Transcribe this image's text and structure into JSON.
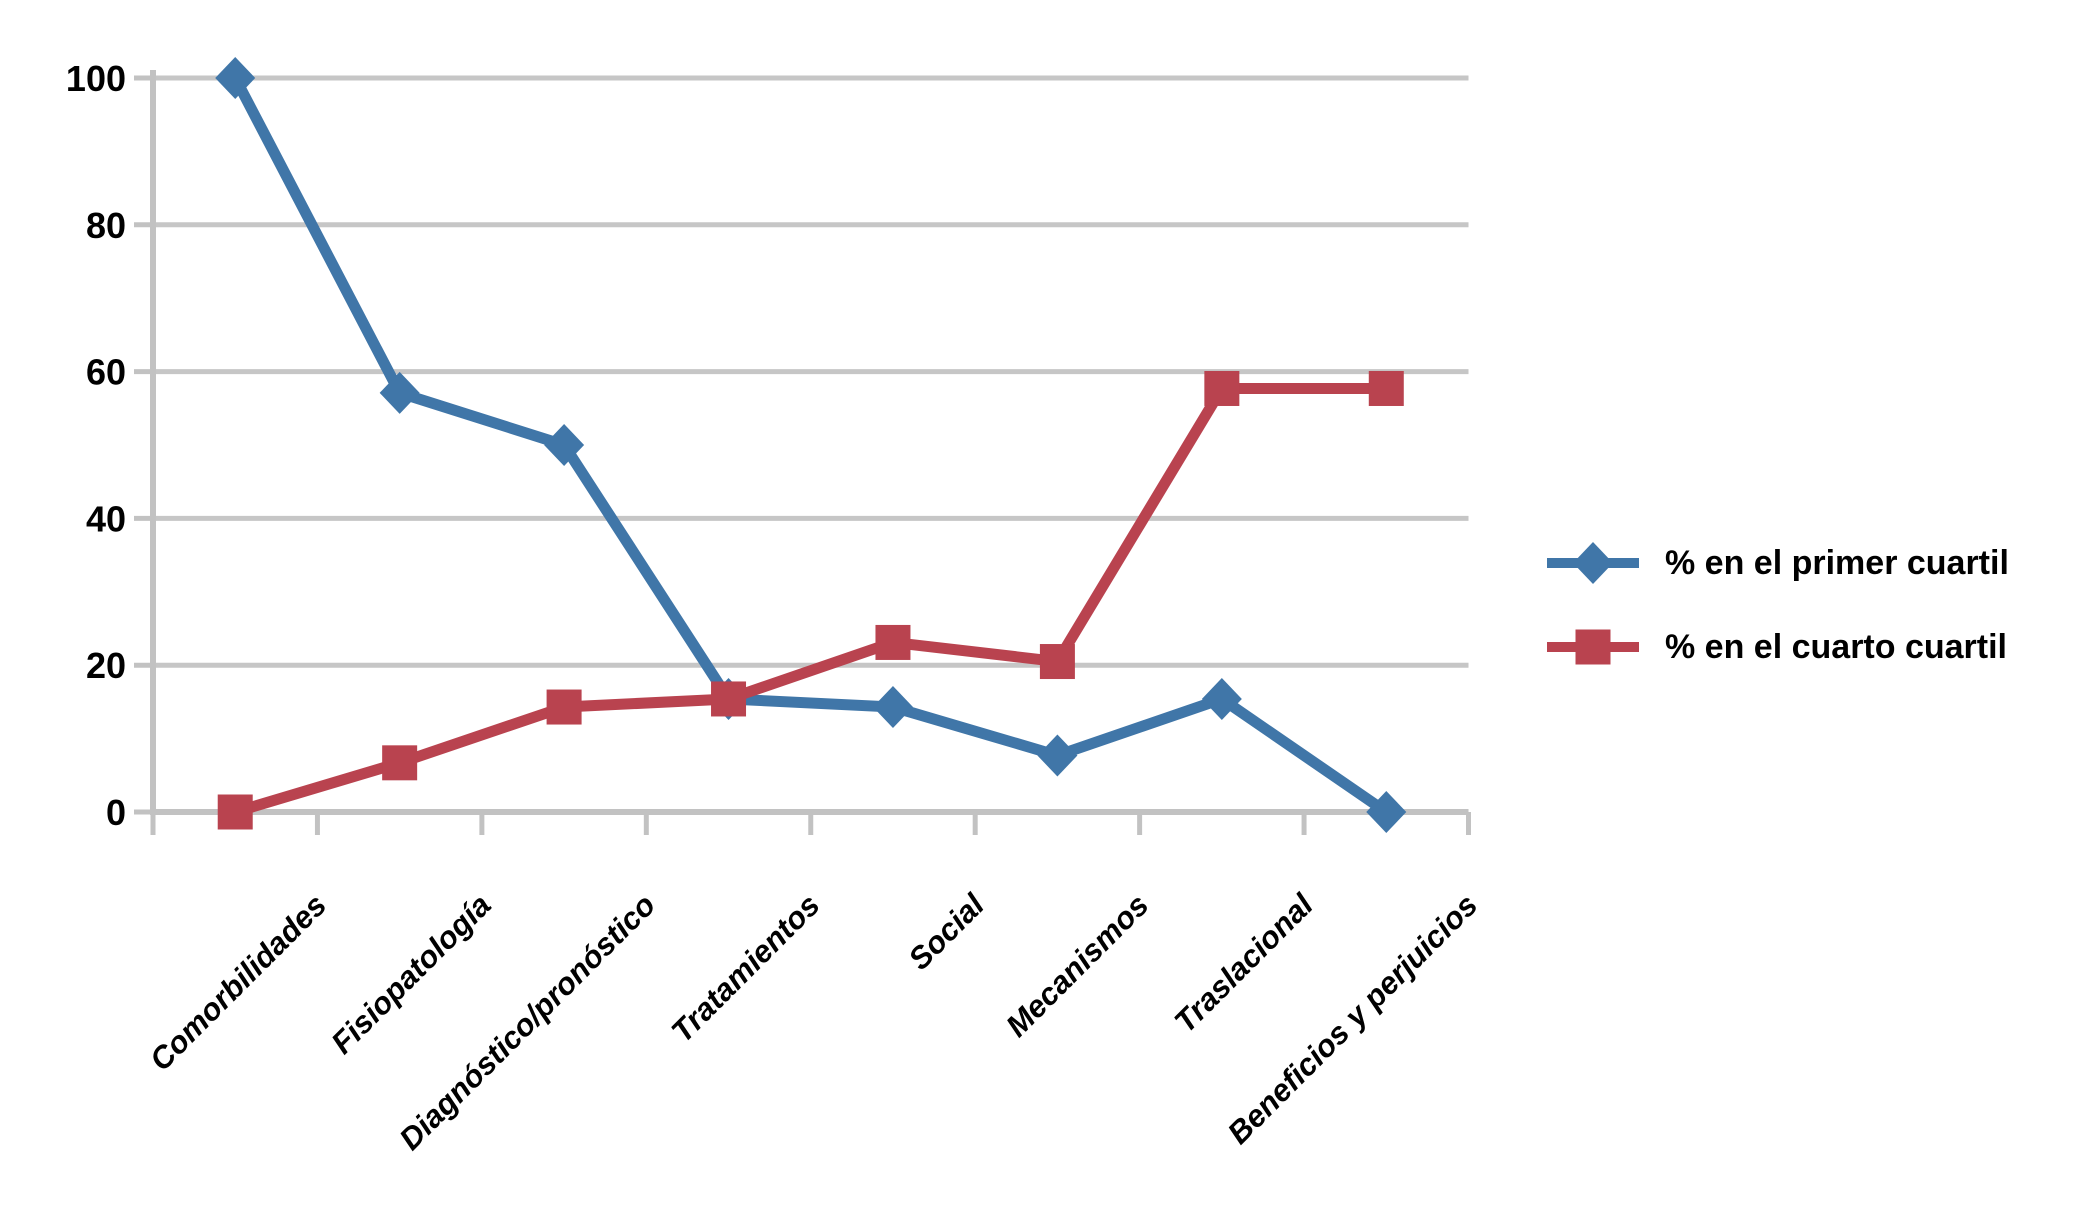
{
  "chart_data": {
    "type": "line",
    "title": "",
    "xlabel": "",
    "ylabel": "",
    "categories": [
      "Comorbilidades",
      "Fisiopatología",
      "Diagnóstico/pronóstico",
      "Tratamientos",
      "Social",
      "Mecanismos",
      "Traslacional",
      "Beneficios y perjuicios"
    ],
    "series": [
      {
        "name": "% en el primer cuartil",
        "color": "#4076A8",
        "marker": "diamond",
        "values": [
          100,
          57.1,
          50,
          15.4,
          14.3,
          7.7,
          15.4,
          0
        ]
      },
      {
        "name": "% en el cuarto cuartil",
        "color": "#B9434F",
        "marker": "square",
        "values": [
          0,
          6.7,
          14.3,
          15.4,
          23.1,
          20.5,
          57.7,
          57.7
        ]
      }
    ],
    "ylim": [
      0,
      100
    ],
    "yticks": [
      0,
      20,
      40,
      60,
      80,
      100
    ],
    "grid": "horizontal",
    "grid_color": "#C6C6C6",
    "axis_color": "#C2C2C2",
    "text_color": "#000000",
    "legend_position": "right"
  }
}
